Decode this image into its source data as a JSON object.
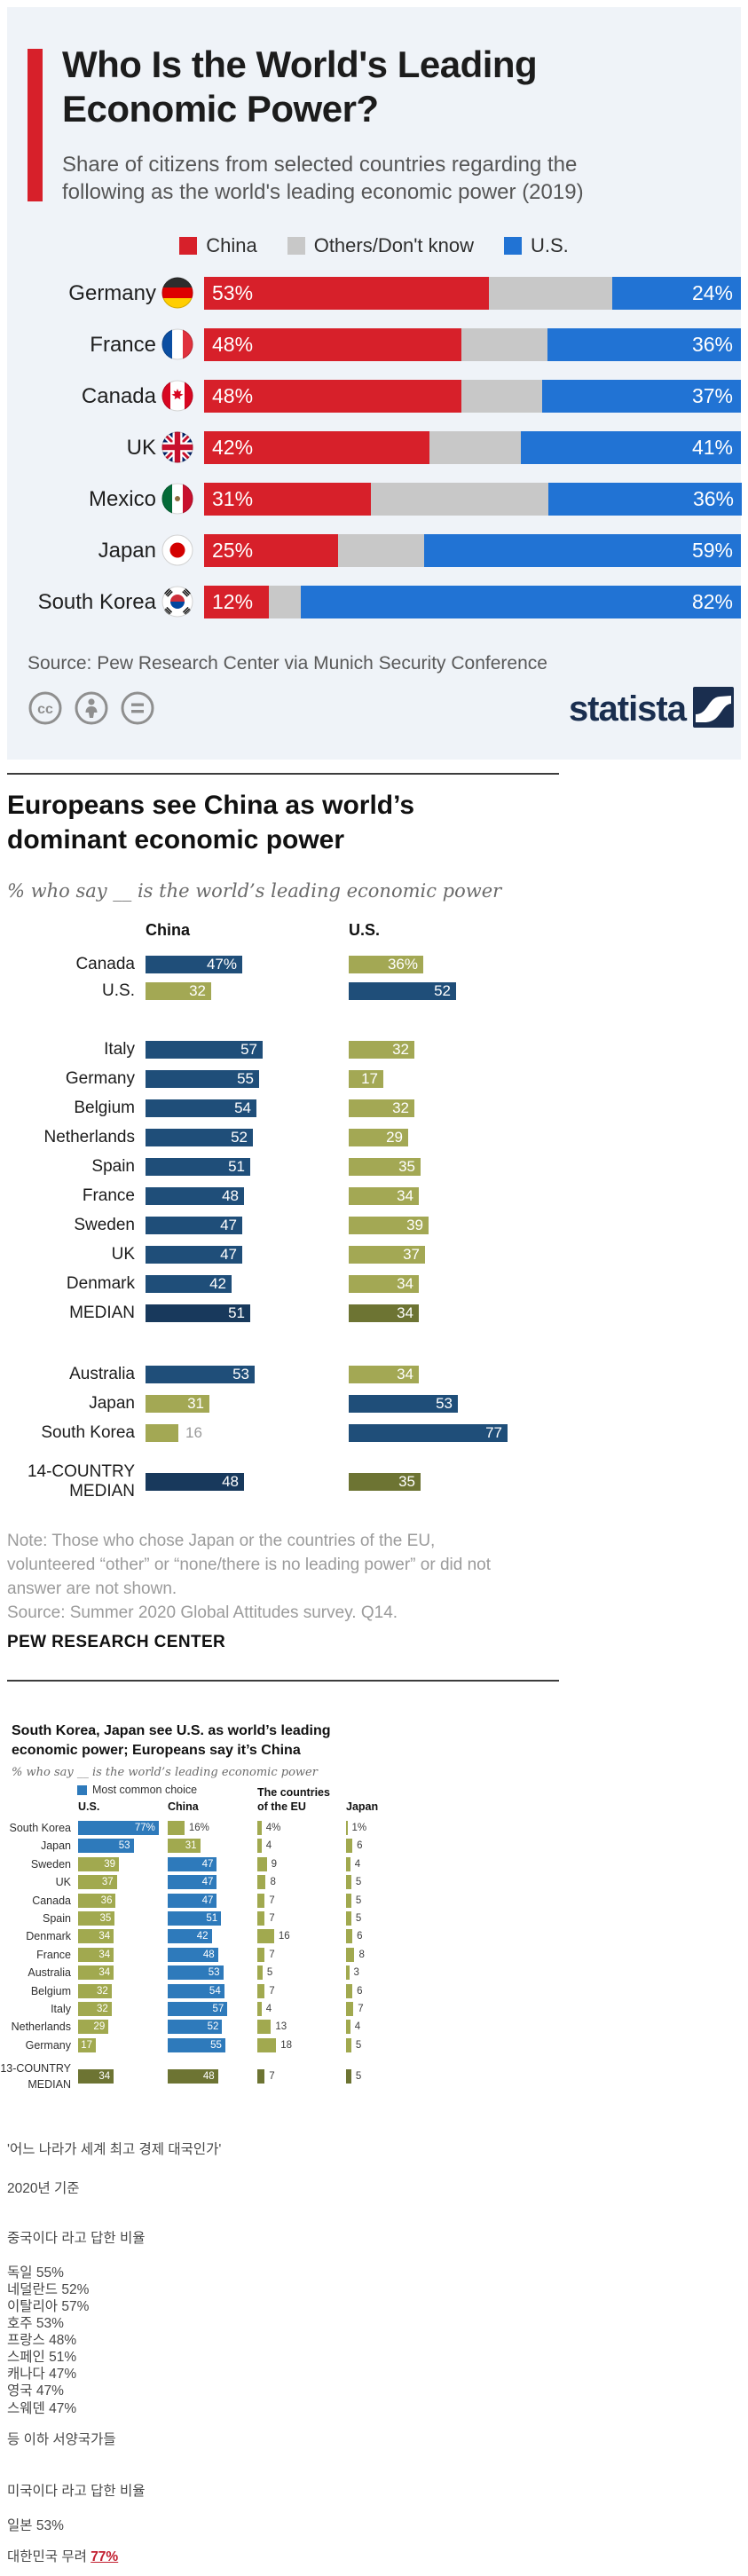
{
  "statista": {
    "title_lines": [
      "Who Is the World's Leading",
      "Economic Power?"
    ],
    "subtitle_lines": [
      "Share of citizens from selected countries regarding the",
      "following as the world's leading economic power (2019)"
    ],
    "legend": [
      {
        "label": "China",
        "color": "#d7202a"
      },
      {
        "label": "Others/Don't know",
        "color": "#c8c8c8"
      },
      {
        "label": "U.S.",
        "color": "#2173d4"
      }
    ],
    "source": "Source: Pew Research Center via Munich Security Conference",
    "brand": "statista",
    "accent_color": "#d7202a",
    "cc_icons": [
      "cc-icon",
      "attribution-person-icon",
      "equal-icon"
    ]
  },
  "pew1": {
    "title_lines": [
      "Europeans see China as world’s",
      "dominant economic power"
    ],
    "subtitle": "% who say __ is the world’s leading economic power",
    "note_lines": [
      "Note: Those who chose Japan or the countries of the EU,",
      "volunteered “other” or “none/there is no leading power” or did not",
      "answer are not shown."
    ],
    "source": "Source: Summer 2020 Global Attitudes survey. Q14.",
    "brand": "PEW RESEARCH CENTER",
    "colors": {
      "navy": "#1f4e79",
      "olive": "#a3a854",
      "navy_dark": "#18395c",
      "olive_dark": "#6d7433"
    }
  },
  "pew2": {
    "title_lines": [
      "South Korea, Japan see U.S. as world’s leading",
      "economic power; Europeans say it’s China"
    ],
    "subtitle": "% who say __ is the world’s leading economic power",
    "legend": "Most common choice",
    "colors": {
      "blue": "#2e7abb",
      "olive": "#a1a94f",
      "olive_dark": "#6d7433"
    }
  },
  "korean": {
    "lines": [
      "'어느 나라가 세계 최고 경제 대국인가'",
      "2020년 기준",
      "중국이다 라고 답한 비율",
      "독일 55%",
      "네덜란드 52%",
      "이탈리아 57%",
      "호주 53%",
      "프랑스 48%",
      "스페인 51%",
      "캐나다 47%",
      "영국 47%",
      "스웨덴 47%",
      "등 이하 서양국가들",
      "미국이다 라고 답한 비율",
      "일본 53%"
    ],
    "last_line": {
      "prefix": "대한민국 무려 ",
      "highlight": "77%"
    },
    "highlight_color": "#c21f30"
  },
  "chart_data": [
    {
      "type": "bar",
      "variant": "stacked-horizontal",
      "title": "Who Is the World's Leading Economic Power?",
      "subtitle": "Share of citizens from selected countries regarding the following as the world's leading economic power (2019)",
      "xlabel": "",
      "ylabel": "",
      "xlim": [
        0,
        100
      ],
      "value_suffix": "%",
      "legend_position": "top",
      "categories": [
        "Germany",
        "France",
        "Canada",
        "UK",
        "Mexico",
        "Japan",
        "South Korea"
      ],
      "flags": [
        "de",
        "fr",
        "ca",
        "gb",
        "mx",
        "jp",
        "kr"
      ],
      "series": [
        {
          "name": "China",
          "color": "#d7202a",
          "values": [
            53,
            48,
            48,
            42,
            31,
            25,
            12
          ]
        },
        {
          "name": "Others/Don't know",
          "color": "#c8c8c8",
          "values": [
            23,
            16,
            15,
            17,
            33,
            16,
            6
          ]
        },
        {
          "name": "U.S.",
          "color": "#2173d4",
          "values": [
            24,
            36,
            37,
            41,
            36,
            59,
            82
          ]
        }
      ]
    },
    {
      "type": "bar",
      "variant": "two-column-horizontal",
      "title": "Europeans see China as world’s dominant economic power",
      "subtitle": "% who say __ is the world’s leading economic power",
      "columns": [
        "China",
        "U.S."
      ],
      "xlim": [
        0,
        100
      ],
      "groups": [
        {
          "rows": [
            {
              "label": "Canada",
              "values": [
                47,
                36
              ],
              "suffix": "%"
            },
            {
              "label": "U.S.",
              "values": [
                32,
                52
              ],
              "flip": true
            }
          ]
        },
        {
          "rows": [
            {
              "label": "Italy",
              "values": [
                57,
                32
              ]
            },
            {
              "label": "Germany",
              "values": [
                55,
                17
              ]
            },
            {
              "label": "Belgium",
              "values": [
                54,
                32
              ]
            },
            {
              "label": "Netherlands",
              "values": [
                52,
                29
              ]
            },
            {
              "label": "Spain",
              "values": [
                51,
                35
              ]
            },
            {
              "label": "France",
              "values": [
                48,
                34
              ]
            },
            {
              "label": "Sweden",
              "values": [
                47,
                39
              ]
            },
            {
              "label": "UK",
              "values": [
                47,
                37
              ]
            },
            {
              "label": "Denmark",
              "values": [
                42,
                34
              ]
            },
            {
              "label": "MEDIAN",
              "values": [
                51,
                34
              ],
              "median": true
            }
          ]
        },
        {
          "rows": [
            {
              "label": "Australia",
              "values": [
                53,
                34
              ]
            },
            {
              "label": "Japan",
              "values": [
                31,
                53
              ],
              "flip": true
            },
            {
              "label": "South Korea",
              "values": [
                16,
                77
              ],
              "flip": true,
              "first_label_outside": true
            }
          ]
        },
        {
          "rows": [
            {
              "label": "14-COUNTRY MEDIAN",
              "values": [
                48,
                35
              ],
              "median": true,
              "two_line_label": true
            }
          ]
        }
      ]
    },
    {
      "type": "bar",
      "variant": "four-column-horizontal",
      "title": "South Korea, Japan see U.S. as world’s leading economic power; Europeans say it’s China",
      "subtitle": "% who say __ is the world’s leading economic power",
      "legend": "Most common choice",
      "columns": [
        "U.S.",
        "China",
        "The countries of the EU",
        "Japan"
      ],
      "xlim": [
        0,
        100
      ],
      "rows": [
        {
          "label": "South Korea",
          "values": [
            77,
            16,
            4,
            1
          ],
          "most": 0,
          "suffix": "%"
        },
        {
          "label": "Japan",
          "values": [
            53,
            31,
            4,
            6
          ],
          "most": 0
        },
        {
          "label": "Sweden",
          "values": [
            39,
            47,
            9,
            4
          ],
          "most": 1
        },
        {
          "label": "UK",
          "values": [
            37,
            47,
            8,
            5
          ],
          "most": 1
        },
        {
          "label": "Canada",
          "values": [
            36,
            47,
            7,
            5
          ],
          "most": 1
        },
        {
          "label": "Spain",
          "values": [
            35,
            51,
            7,
            5
          ],
          "most": 1
        },
        {
          "label": "Denmark",
          "values": [
            34,
            42,
            16,
            6
          ],
          "most": 1
        },
        {
          "label": "France",
          "values": [
            34,
            48,
            7,
            8
          ],
          "most": 1
        },
        {
          "label": "Australia",
          "values": [
            34,
            53,
            5,
            3
          ],
          "most": 1
        },
        {
          "label": "Belgium",
          "values": [
            32,
            54,
            7,
            6
          ],
          "most": 1
        },
        {
          "label": "Italy",
          "values": [
            32,
            57,
            4,
            7
          ],
          "most": 1
        },
        {
          "label": "Netherlands",
          "values": [
            29,
            52,
            13,
            4
          ],
          "most": 1
        },
        {
          "label": "Germany",
          "values": [
            17,
            55,
            18,
            5
          ],
          "most": 1
        },
        {
          "label": "13-COUNTRY MEDIAN",
          "values": [
            34,
            48,
            7,
            5
          ],
          "median": true,
          "two_line_label": true
        }
      ]
    }
  ]
}
